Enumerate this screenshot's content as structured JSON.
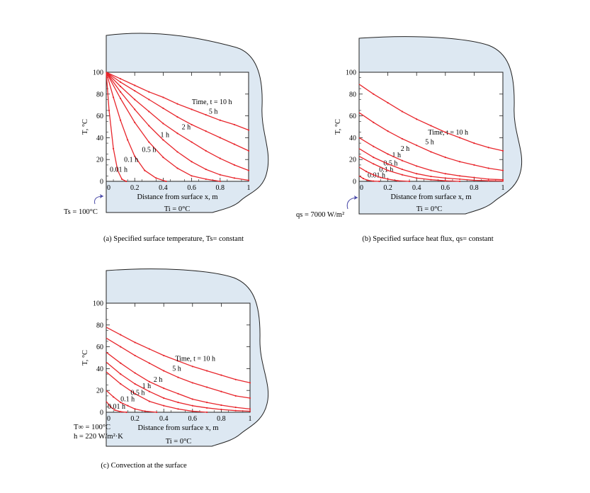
{
  "colors": {
    "curve": "#e8262c",
    "medium": "#dde8f2",
    "outline": "#222222",
    "marker_arrow": "#4a4aa8"
  },
  "chart_data": [
    {
      "id": "a",
      "type": "line",
      "caption": "(a) Specified surface temperature, Ts= constant",
      "xlabel": "Distance from surface x, m",
      "ylabel": "T, °C",
      "xlim": [
        0,
        1
      ],
      "ylim": [
        0,
        100
      ],
      "x_ticks": [
        "0",
        "0.2",
        "0.4",
        "0.6",
        "0.8",
        "1"
      ],
      "y_ticks": [
        "0",
        "20",
        "40",
        "60",
        "80",
        "100"
      ],
      "grid": false,
      "bc_labels": [
        "Ts = 100°C"
      ],
      "initial_label": "Ti = 0°C",
      "series": [
        {
          "label": "0.01 h",
          "x": [
            0,
            0.02,
            0.05,
            0.08,
            0.11,
            0.14
          ],
          "y": [
            100,
            65,
            30,
            10,
            2,
            0
          ]
        },
        {
          "label": "0.1 h",
          "x": [
            0,
            0.05,
            0.1,
            0.15,
            0.2,
            0.27,
            0.35,
            0.42
          ],
          "y": [
            100,
            77,
            56,
            38,
            23,
            10,
            3,
            0
          ]
        },
        {
          "label": "0.5 h",
          "x": [
            0,
            0.1,
            0.2,
            0.3,
            0.4,
            0.5,
            0.6,
            0.7,
            0.8
          ],
          "y": [
            100,
            76,
            54,
            36,
            22,
            12,
            5,
            2,
            0
          ]
        },
        {
          "label": "1 h",
          "x": [
            0,
            0.1,
            0.2,
            0.3,
            0.4,
            0.5,
            0.6,
            0.7,
            0.8,
            0.9,
            1.0
          ],
          "y": [
            100,
            82,
            66,
            51,
            38,
            27,
            18,
            11,
            6,
            3,
            1
          ]
        },
        {
          "label": "2 h",
          "x": [
            0,
            0.1,
            0.2,
            0.3,
            0.4,
            0.5,
            0.6,
            0.7,
            0.8,
            0.9,
            1.0
          ],
          "y": [
            100,
            87,
            75,
            64,
            53,
            44,
            36,
            28,
            21,
            15,
            10
          ]
        },
        {
          "label": "5 h",
          "x": [
            0,
            0.1,
            0.2,
            0.3,
            0.4,
            0.5,
            0.6,
            0.7,
            0.8,
            0.9,
            1.0
          ],
          "y": [
            100,
            91,
            83,
            75,
            67,
            59,
            52,
            46,
            40,
            34,
            28
          ]
        },
        {
          "label": "Time, t = 10 h",
          "x": [
            0,
            0.1,
            0.2,
            0.3,
            0.4,
            0.5,
            0.6,
            0.7,
            0.8,
            0.9,
            1.0
          ],
          "y": [
            100,
            94,
            88,
            82,
            77,
            71,
            66,
            61,
            56,
            52,
            47
          ]
        }
      ]
    },
    {
      "id": "b",
      "type": "line",
      "caption": "(b) Specified surface heat flux, qs= constant",
      "xlabel": "Distance from surface x, m",
      "ylabel": "T, °C",
      "xlim": [
        0,
        1
      ],
      "ylim": [
        0,
        100
      ],
      "x_ticks": [
        "0",
        "0.2",
        "0.4",
        "0.6",
        "0.8",
        "1"
      ],
      "y_ticks": [
        "0",
        "20",
        "40",
        "60",
        "80",
        "100"
      ],
      "grid": false,
      "bc_labels": [
        "qs = 7000 W/m²"
      ],
      "initial_label": "Ti = 0°C",
      "series": [
        {
          "label": "0.01 h",
          "x": [
            0,
            0.03,
            0.06,
            0.1,
            0.14
          ],
          "y": [
            5,
            2.5,
            1,
            0.2,
            0
          ]
        },
        {
          "label": "0.1 h",
          "x": [
            0,
            0.05,
            0.1,
            0.15,
            0.2,
            0.27,
            0.35
          ],
          "y": [
            13,
            9,
            6,
            3.5,
            2,
            0.5,
            0
          ]
        },
        {
          "label": "0.5 h",
          "x": [
            0,
            0.1,
            0.2,
            0.3,
            0.4,
            0.5,
            0.6,
            0.7
          ],
          "y": [
            23,
            16,
            10,
            6,
            3,
            1.5,
            0.5,
            0
          ]
        },
        {
          "label": "1 h",
          "x": [
            0,
            0.1,
            0.2,
            0.3,
            0.4,
            0.5,
            0.6,
            0.7,
            0.8,
            0.9,
            1.0
          ],
          "y": [
            30,
            22,
            16,
            11,
            7,
            4.5,
            3,
            2,
            1,
            0.5,
            0.3
          ]
        },
        {
          "label": "2 h",
          "x": [
            0,
            0.1,
            0.2,
            0.3,
            0.4,
            0.5,
            0.6,
            0.7,
            0.8,
            0.9,
            1.0
          ],
          "y": [
            40,
            32,
            25,
            19,
            14,
            10,
            7,
            5,
            3.5,
            2,
            1.5
          ]
        },
        {
          "label": "5 h",
          "x": [
            0,
            0.1,
            0.2,
            0.3,
            0.4,
            0.5,
            0.6,
            0.7,
            0.8,
            0.9,
            1.0
          ],
          "y": [
            63,
            54,
            46,
            39,
            33,
            27,
            22,
            18,
            15,
            12,
            10
          ]
        },
        {
          "label": "Time, t = 10 h",
          "x": [
            0,
            0.1,
            0.2,
            0.3,
            0.4,
            0.5,
            0.6,
            0.7,
            0.8,
            0.9,
            1.0
          ],
          "y": [
            89,
            80,
            72,
            64,
            57,
            51,
            45,
            40,
            35,
            31,
            28
          ]
        }
      ]
    },
    {
      "id": "c",
      "type": "line",
      "caption": "(c) Convection at the surface",
      "xlabel": "Distance from surface x, m",
      "ylabel": "T, °C",
      "xlim": [
        0,
        1
      ],
      "ylim": [
        0,
        100
      ],
      "x_ticks": [
        "0",
        "0.2",
        "0.4",
        "0.6",
        "0.8",
        "1"
      ],
      "y_ticks": [
        "0",
        "20",
        "40",
        "60",
        "80",
        "100"
      ],
      "grid": false,
      "bc_labels": [
        "T∞ = 100°C",
        "h = 220 W/m²·K"
      ],
      "initial_label": "Ti = 0°C",
      "series": [
        {
          "label": "0.01 h",
          "x": [
            0,
            0.03,
            0.06,
            0.1,
            0.14
          ],
          "y": [
            10,
            5,
            2,
            0.5,
            0
          ]
        },
        {
          "label": "0.1 h",
          "x": [
            0,
            0.05,
            0.1,
            0.15,
            0.2,
            0.27,
            0.35
          ],
          "y": [
            20,
            14,
            9,
            6,
            3,
            1,
            0
          ]
        },
        {
          "label": "0.5 h",
          "x": [
            0,
            0.1,
            0.2,
            0.3,
            0.4,
            0.5,
            0.6,
            0.7
          ],
          "y": [
            37,
            26,
            17,
            10,
            6,
            3,
            1,
            0
          ]
        },
        {
          "label": "1 h",
          "x": [
            0,
            0.1,
            0.2,
            0.3,
            0.4,
            0.5,
            0.6,
            0.7,
            0.8,
            0.9,
            1.0
          ],
          "y": [
            46,
            35,
            26,
            19,
            13,
            9,
            6,
            4,
            2.5,
            1.5,
            1
          ]
        },
        {
          "label": "2 h",
          "x": [
            0,
            0.1,
            0.2,
            0.3,
            0.4,
            0.5,
            0.6,
            0.7,
            0.8,
            0.9,
            1.0
          ],
          "y": [
            55,
            45,
            36,
            28,
            22,
            17,
            12,
            9,
            6.5,
            4.5,
            3
          ]
        },
        {
          "label": "5 h",
          "x": [
            0,
            0.1,
            0.2,
            0.3,
            0.4,
            0.5,
            0.6,
            0.7,
            0.8,
            0.9,
            1.0
          ],
          "y": [
            68,
            60,
            52,
            45,
            38,
            32,
            27,
            23,
            19,
            15,
            13
          ]
        },
        {
          "label": "Time, t = 10 h",
          "x": [
            0,
            0.1,
            0.2,
            0.3,
            0.4,
            0.5,
            0.6,
            0.7,
            0.8,
            0.9,
            1.0
          ],
          "y": [
            78,
            71,
            64,
            58,
            52,
            47,
            42,
            38,
            34,
            30,
            27
          ]
        }
      ]
    }
  ]
}
